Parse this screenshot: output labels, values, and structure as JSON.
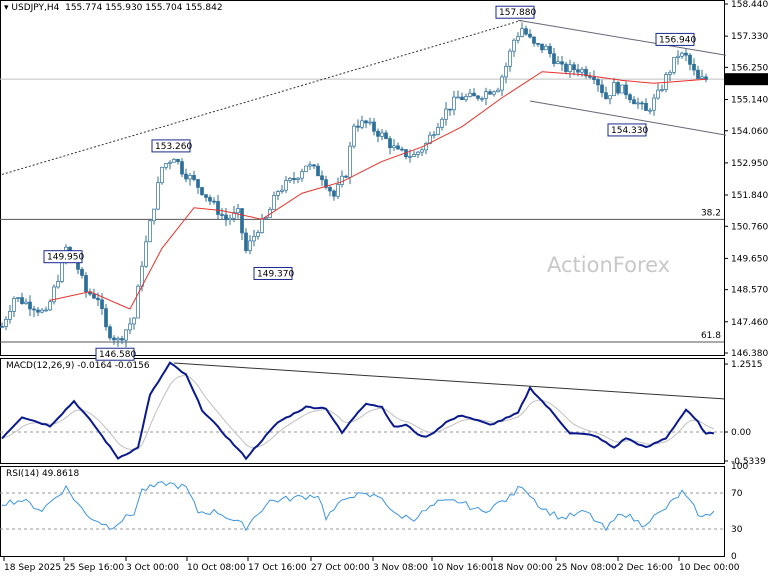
{
  "header": {
    "symbol": "USDJPY,H4",
    "ohlc": "155.774 155.930 155.704 155.842"
  },
  "watermark": "ActionForex",
  "colors": {
    "candle": "#2e6f9a",
    "ma": "#e8312a",
    "macd": "#0a1a8c",
    "signal": "#c0c0c0",
    "rsi": "#3d95e0",
    "trend": "#555555"
  },
  "price_axis": {
    "ticks": [
      "158.440",
      "157.330",
      "156.250",
      "155.140",
      "154.060",
      "152.950",
      "151.840",
      "150.760",
      "149.650",
      "148.570",
      "147.460",
      "146.380"
    ],
    "current": "155.842"
  },
  "time_axis": [
    "18 Sep 2025",
    "25 Sep 16:00",
    "3 Oct 00:00",
    "10 Oct 08:00",
    "17 Oct 16:00",
    "27 Oct 00:00",
    "3 Nov 08:00",
    "10 Nov 16:00",
    "18 Nov 00:00",
    "25 Nov 08:00",
    "2 Dec 16:00",
    "10 Dec 00:00"
  ],
  "fib": [
    {
      "label": "38.2",
      "price": 151.0
    },
    {
      "label": "61.8",
      "price": 146.76
    }
  ],
  "annotations": [
    {
      "label": "157.880",
      "bar": 128,
      "price": 157.88
    },
    {
      "label": "156.940",
      "bar": 168,
      "price": 156.94
    },
    {
      "label": "153.260",
      "bar": 42,
      "price": 153.26
    },
    {
      "label": "149.950",
      "bar": 15,
      "price": 149.95
    },
    {
      "label": "149.370",
      "bar": 60,
      "price": 149.37
    },
    {
      "label": "146.580",
      "bar": 28,
      "price": 146.58
    },
    {
      "label": "154.330",
      "bar": 156,
      "price": 154.33
    }
  ],
  "chart_data": [
    {
      "type": "candlestick",
      "title": "USDJPY,H4",
      "ylim": [
        146.38,
        158.44
      ],
      "close_path": [
        [
          0,
          147.3
        ],
        [
          3,
          148.3
        ],
        [
          8,
          148.0
        ],
        [
          11,
          147.7
        ],
        [
          14,
          149.0
        ],
        [
          16,
          150.0
        ],
        [
          19,
          149.3
        ],
        [
          21,
          148.5
        ],
        [
          24,
          148.3
        ],
        [
          26,
          147.2
        ],
        [
          29,
          146.8
        ],
        [
          31,
          147.2
        ],
        [
          33,
          147.6
        ],
        [
          35,
          149.5
        ],
        [
          38,
          151.5
        ],
        [
          40,
          152.8
        ],
        [
          43,
          153.2
        ],
        [
          45,
          152.7
        ],
        [
          48,
          152.3
        ],
        [
          50,
          152.0
        ],
        [
          54,
          151.3
        ],
        [
          56,
          151.0
        ],
        [
          59,
          151.2
        ],
        [
          61,
          149.9
        ],
        [
          64,
          150.7
        ],
        [
          66,
          151.0
        ],
        [
          69,
          152.0
        ],
        [
          73,
          152.4
        ],
        [
          76,
          152.9
        ],
        [
          80,
          152.5
        ],
        [
          83,
          151.8
        ],
        [
          86,
          152.6
        ],
        [
          88,
          154.3
        ],
        [
          91,
          154.3
        ],
        [
          95,
          153.9
        ],
        [
          99,
          153.3
        ],
        [
          103,
          153.2
        ],
        [
          106,
          153.6
        ],
        [
          110,
          154.6
        ],
        [
          114,
          155.2
        ],
        [
          118,
          155.2
        ],
        [
          121,
          155.4
        ],
        [
          124,
          155.6
        ],
        [
          126,
          156.3
        ],
        [
          128,
          157.2
        ],
        [
          130,
          157.6
        ],
        [
          133,
          157.0
        ],
        [
          136,
          156.9
        ],
        [
          140,
          156.2
        ],
        [
          144,
          156.2
        ],
        [
          148,
          156.0
        ],
        [
          151,
          155.2
        ],
        [
          153,
          155.6
        ],
        [
          156,
          155.4
        ],
        [
          159,
          155.0
        ],
        [
          161,
          154.7
        ],
        [
          164,
          155.3
        ],
        [
          166,
          155.9
        ],
        [
          169,
          156.7
        ],
        [
          171,
          156.6
        ],
        [
          174,
          155.8
        ],
        [
          176,
          155.842
        ]
      ],
      "ma": [
        [
          12,
          148.2
        ],
        [
          22,
          148.5
        ],
        [
          32,
          147.9
        ],
        [
          40,
          150.0
        ],
        [
          48,
          151.4
        ],
        [
          55,
          151.3
        ],
        [
          65,
          151.0
        ],
        [
          75,
          151.9
        ],
        [
          85,
          152.3
        ],
        [
          95,
          153.0
        ],
        [
          105,
          153.5
        ],
        [
          115,
          154.2
        ],
        [
          125,
          155.2
        ],
        [
          135,
          156.1
        ],
        [
          145,
          156.0
        ],
        [
          155,
          155.8
        ],
        [
          163,
          155.7
        ],
        [
          176,
          155.84
        ]
      ],
      "trendlines": [
        {
          "from": [
            0,
            152.55
          ],
          "to": [
            130,
            157.88
          ],
          "style": "dotted"
        },
        {
          "from": [
            129,
            157.88
          ],
          "to": [
            181,
            156.67
          ]
        },
        {
          "from": [
            132,
            155.09
          ],
          "to": [
            181,
            153.91
          ]
        }
      ]
    },
    {
      "type": "line",
      "title": "MACD(12,26,9) -0.0164 -0.0156",
      "ylim": [
        -0.5339,
        1.2515
      ],
      "ticks": [
        "1.2515",
        "0.00",
        "-0.5339"
      ],
      "macd": [
        [
          0,
          -0.11
        ],
        [
          5,
          0.28
        ],
        [
          12,
          0.11
        ],
        [
          18,
          0.57
        ],
        [
          23,
          0.13
        ],
        [
          29,
          -0.48
        ],
        [
          34,
          -0.29
        ],
        [
          37,
          0.68
        ],
        [
          42,
          1.27
        ],
        [
          46,
          1.05
        ],
        [
          50,
          0.41
        ],
        [
          61,
          -0.48
        ],
        [
          69,
          0.18
        ],
        [
          76,
          0.46
        ],
        [
          81,
          0.44
        ],
        [
          85,
          -0.02
        ],
        [
          89,
          0.37
        ],
        [
          91,
          0.53
        ],
        [
          95,
          0.46
        ],
        [
          98,
          0.09
        ],
        [
          101,
          0.13
        ],
        [
          105,
          -0.09
        ],
        [
          107,
          -0.06
        ],
        [
          111,
          0.18
        ],
        [
          115,
          0.31
        ],
        [
          122,
          0.13
        ],
        [
          127,
          0.28
        ],
        [
          129,
          0.35
        ],
        [
          132,
          0.81
        ],
        [
          137,
          0.41
        ],
        [
          142,
          -0.02
        ],
        [
          148,
          -0.06
        ],
        [
          153,
          -0.29
        ],
        [
          156,
          -0.11
        ],
        [
          161,
          -0.29
        ],
        [
          166,
          -0.11
        ],
        [
          171,
          0.41
        ],
        [
          174,
          0.18
        ],
        [
          176,
          -0.04
        ],
        [
          178,
          -0.0164
        ]
      ],
      "trendline": {
        "from": [
          43,
          1.27
        ],
        "to": [
          181,
          0.61
        ]
      }
    },
    {
      "type": "line",
      "title": "RSI(14) 49.8618",
      "ylim": [
        0,
        100
      ],
      "ticks": [
        "100",
        "70",
        "30",
        "0"
      ],
      "levels": [
        70,
        30
      ],
      "rsi": [
        [
          0,
          59
        ],
        [
          5,
          62
        ],
        [
          10,
          51
        ],
        [
          14,
          68
        ],
        [
          16,
          76
        ],
        [
          21,
          46
        ],
        [
          27,
          32
        ],
        [
          33,
          48
        ],
        [
          35,
          73
        ],
        [
          41,
          81
        ],
        [
          46,
          76
        ],
        [
          49,
          49
        ],
        [
          54,
          49
        ],
        [
          61,
          32
        ],
        [
          64,
          48
        ],
        [
          67,
          61
        ],
        [
          74,
          65
        ],
        [
          79,
          68
        ],
        [
          81,
          43
        ],
        [
          87,
          68
        ],
        [
          95,
          66
        ],
        [
          98,
          46
        ],
        [
          103,
          42
        ],
        [
          109,
          59
        ],
        [
          114,
          61
        ],
        [
          120,
          49
        ],
        [
          127,
          65
        ],
        [
          130,
          79
        ],
        [
          135,
          53
        ],
        [
          140,
          42
        ],
        [
          146,
          49
        ],
        [
          151,
          29
        ],
        [
          155,
          49
        ],
        [
          160,
          35
        ],
        [
          165,
          49
        ],
        [
          170,
          71
        ],
        [
          175,
          42
        ],
        [
          178,
          49.86
        ]
      ]
    }
  ]
}
